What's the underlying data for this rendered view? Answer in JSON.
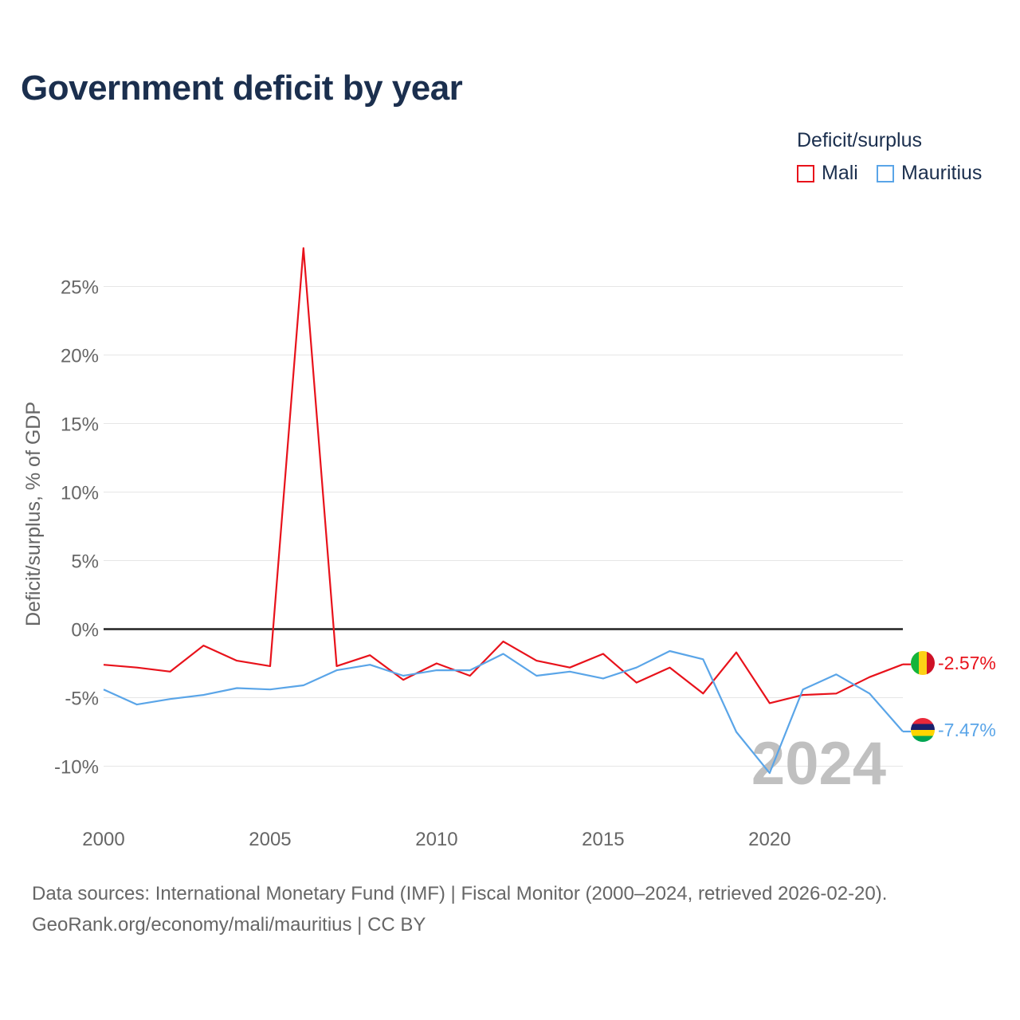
{
  "title": "Government deficit by year",
  "legend": {
    "title": "Deficit/surplus",
    "items": [
      {
        "label": "Mali",
        "color": "#e8121b"
      },
      {
        "label": "Mauritius",
        "color": "#5aa5e8"
      }
    ]
  },
  "footer": {
    "source": "Data sources: International Monetary Fund (IMF) | Fiscal Monitor (2000–2024, retrieved 2026-02-20).",
    "credit": "GeoRank.org/economy/mali/mauritius | CC BY"
  },
  "chart_data": {
    "type": "line",
    "title": "Government deficit by year",
    "ylabel": "Deficit/surplus, % of GDP",
    "xlabel": "",
    "year_label": "2024",
    "x": [
      2000,
      2001,
      2002,
      2003,
      2004,
      2005,
      2006,
      2007,
      2008,
      2009,
      2010,
      2011,
      2012,
      2013,
      2014,
      2015,
      2016,
      2017,
      2018,
      2019,
      2020,
      2021,
      2022,
      2023,
      2024
    ],
    "xlim": [
      2000,
      2024
    ],
    "ylim": [
      -13,
      28
    ],
    "x_ticks": [
      2000,
      2005,
      2010,
      2015,
      2020
    ],
    "x_tick_labels": [
      "2000",
      "2005",
      "2010",
      "2015",
      "2020"
    ],
    "y_ticks": [
      -10,
      -5,
      0,
      5,
      10,
      15,
      20,
      25
    ],
    "y_tick_labels": [
      "-10%",
      "-5%",
      "0%",
      "5%",
      "10%",
      "15%",
      "20%",
      "25%"
    ],
    "grid": true,
    "legend_position": "top-right",
    "series": [
      {
        "name": "Mali",
        "color": "#e8121b",
        "values": [
          -2.6,
          -2.8,
          -3.1,
          -1.2,
          -2.3,
          -2.7,
          27.8,
          -2.7,
          -1.9,
          -3.7,
          -2.5,
          -3.4,
          -0.9,
          -2.3,
          -2.8,
          -1.8,
          -3.9,
          -2.8,
          -4.7,
          -1.7,
          -5.4,
          -4.8,
          -4.7,
          -3.5,
          -2.57
        ],
        "end_label": "-2.57%"
      },
      {
        "name": "Mauritius",
        "color": "#5aa5e8",
        "values": [
          -4.4,
          -5.5,
          -5.1,
          -4.8,
          -4.3,
          -4.4,
          -4.1,
          -3.0,
          -2.6,
          -3.4,
          -3.0,
          -3.0,
          -1.8,
          -3.4,
          -3.1,
          -3.6,
          -2.8,
          -1.6,
          -2.2,
          -7.5,
          -10.5,
          -4.4,
          -3.3,
          -4.7,
          -7.47
        ],
        "end_label": "-7.47%"
      }
    ]
  }
}
